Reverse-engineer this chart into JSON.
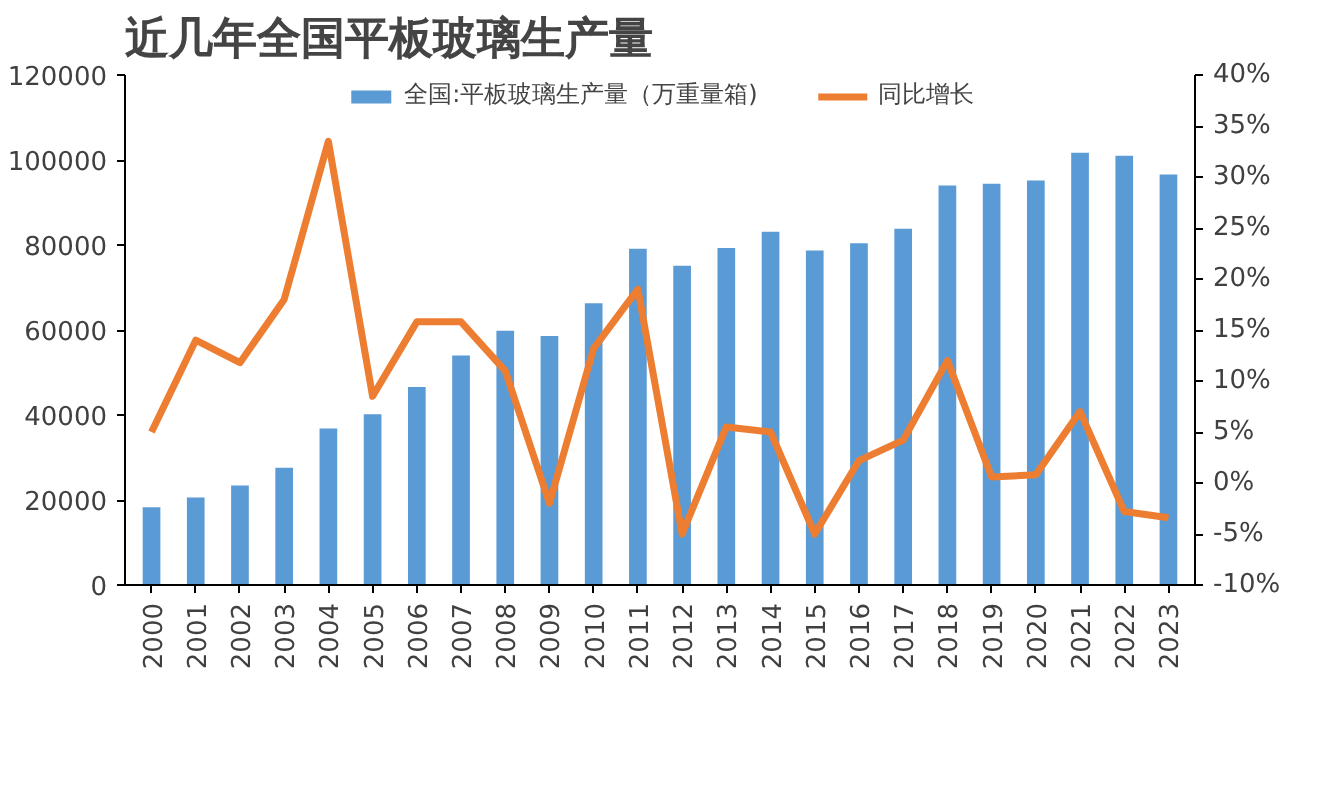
{
  "chart_data": {
    "type": "bar",
    "title": "近几年全国平板玻璃生产量",
    "categories": [
      "2000",
      "2001",
      "2002",
      "2003",
      "2004",
      "2005",
      "2006",
      "2007",
      "2008",
      "2009",
      "2010",
      "2011",
      "2012",
      "2013",
      "2014",
      "2015",
      "2016",
      "2017",
      "2018",
      "2019",
      "2020",
      "2021",
      "2022",
      "2023"
    ],
    "series": [
      {
        "name": "全国:平板玻璃生产量（万重量箱)",
        "color": "#5b9bd5",
        "values": [
          18300,
          20600,
          23400,
          27600,
          36800,
          40200,
          46600,
          54000,
          59800,
          58600,
          66300,
          79100,
          75100,
          79300,
          83100,
          78700,
          80400,
          83800,
          94000,
          94400,
          95200,
          101700,
          101000,
          96600
        ]
      },
      {
        "name": "同比增长",
        "color": "#ed7d31",
        "type": "line",
        "axis": "y2",
        "values": [
          5,
          14,
          11.8,
          18,
          33.5,
          8.5,
          15.8,
          15.8,
          11,
          -2,
          13.2,
          19,
          -5,
          5.5,
          5,
          -5,
          2.2,
          4.2,
          12,
          0.6,
          0.8,
          7,
          -2.8,
          -3.4
        ]
      }
    ],
    "ylim": [
      0,
      120000
    ],
    "yticks": [
      0,
      20000,
      40000,
      60000,
      80000,
      100000,
      120000
    ],
    "y2lim": [
      -10,
      40
    ],
    "y2ticks": [
      {
        "value": -10,
        "label": "-10%"
      },
      {
        "value": -5,
        "label": "-5%"
      },
      {
        "value": 0,
        "label": "0%"
      },
      {
        "value": 5,
        "label": "5%"
      },
      {
        "value": 10,
        "label": "10%"
      },
      {
        "value": 15,
        "label": "15%"
      },
      {
        "value": 20,
        "label": "20%"
      },
      {
        "value": 25,
        "label": "25%"
      },
      {
        "value": 30,
        "label": "30%"
      },
      {
        "value": 35,
        "label": "35%"
      },
      {
        "value": 40,
        "label": "40%"
      }
    ],
    "legend": "top",
    "grid": false,
    "marker": "none",
    "line_style": "solid"
  }
}
